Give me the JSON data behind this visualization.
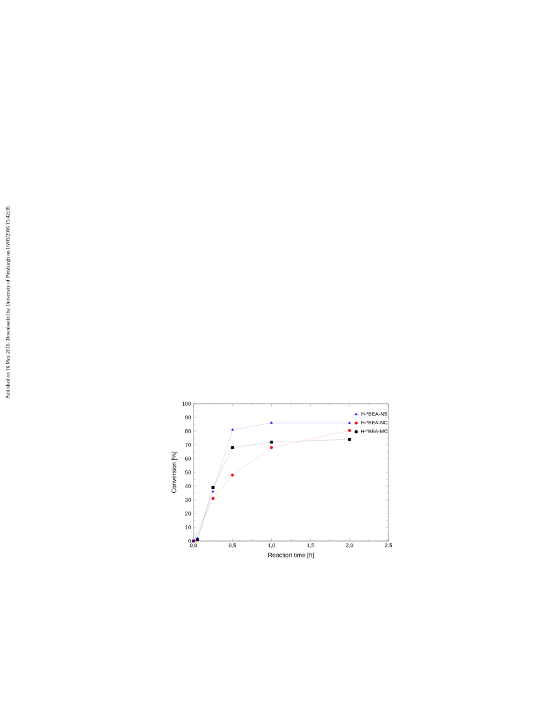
{
  "chart_data": {
    "type": "line",
    "xlabel": "Reaction time [h]",
    "ylabel": "Conversion [%]",
    "xlim": [
      0,
      2.5
    ],
    "ylim": [
      0,
      100
    ],
    "xticks": [
      {
        "value": 0,
        "label": "0,0"
      },
      {
        "value": 0.5,
        "label": "0,5"
      },
      {
        "value": 1,
        "label": "1,0"
      },
      {
        "value": 1.5,
        "label": "1,5"
      },
      {
        "value": 2,
        "label": "2,0"
      },
      {
        "value": 2.5,
        "label": "2,5"
      }
    ],
    "yticks": [
      0,
      10,
      20,
      30,
      40,
      50,
      60,
      70,
      80,
      90,
      100
    ],
    "legend": "top right",
    "grid": false,
    "x": [
      0,
      0.05,
      0.25,
      0.5,
      1,
      2
    ],
    "series": [
      {
        "name": "H-*BEA-NS",
        "color": "#0000ff",
        "marker": "triangle",
        "values": [
          0,
          2,
          36,
          81,
          86,
          86
        ]
      },
      {
        "name": "H-*BEA-NC",
        "color": "#ff0000",
        "marker": "circle",
        "values": [
          0,
          null,
          31,
          48,
          68,
          80.5
        ]
      },
      {
        "name": "H-*BEA-MC",
        "color": "#000000",
        "marker": "square",
        "values": [
          0,
          1,
          39,
          68,
          72,
          74
        ]
      }
    ],
    "annotations": [
      "Published on 16 May 2016. Downloaded by University of Pittsburgh on 16/05/2016 15:42:08."
    ]
  }
}
